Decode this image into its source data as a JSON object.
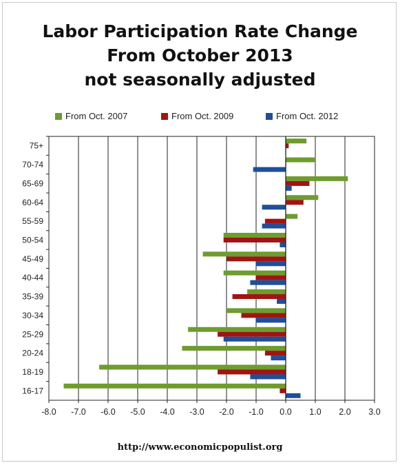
{
  "chart_data": {
    "type": "bar",
    "orientation": "horizontal",
    "title_lines": [
      "Labor Participation Rate Change",
      "From October 2013",
      "not seasonally adjusted"
    ],
    "categories": [
      "75+",
      "70-74",
      "65-69",
      "60-64",
      "55-59",
      "50-54",
      "45-49",
      "40-44",
      "35-39",
      "30-34",
      "25-29",
      "20-24",
      "18-19",
      "16-17"
    ],
    "series": [
      {
        "name": "From Oct. 2007",
        "color": "#6e9c2e",
        "values": [
          0.7,
          1.0,
          2.1,
          1.1,
          0.4,
          -2.1,
          -2.8,
          -2.1,
          -1.3,
          -2.0,
          -3.3,
          -3.5,
          -6.3,
          -7.5
        ]
      },
      {
        "name": "From Oct. 2009",
        "color": "#a01414",
        "values": [
          0.1,
          0.0,
          0.8,
          0.6,
          -0.7,
          -2.1,
          -2.0,
          -1.0,
          -1.8,
          -1.5,
          -2.3,
          -0.7,
          -2.3,
          -0.2
        ]
      },
      {
        "name": "From Oct. 2012",
        "color": "#1f4e9c",
        "values": [
          0.0,
          -1.1,
          0.2,
          -0.8,
          -0.8,
          -0.2,
          -1.0,
          -1.2,
          -0.3,
          -1.0,
          -2.1,
          -0.5,
          -1.2,
          0.5
        ]
      }
    ],
    "xlim": [
      -8.0,
      3.0
    ],
    "xticks": [
      "-8.0",
      "-7.0",
      "-6.0",
      "-5.0",
      "-4.0",
      "-3.0",
      "-2.0",
      "-1.0",
      "0.0",
      "1.0",
      "2.0",
      "3.0"
    ],
    "grid": true,
    "legend_position": "top"
  },
  "footer": "http://www.economicpopulist.org"
}
